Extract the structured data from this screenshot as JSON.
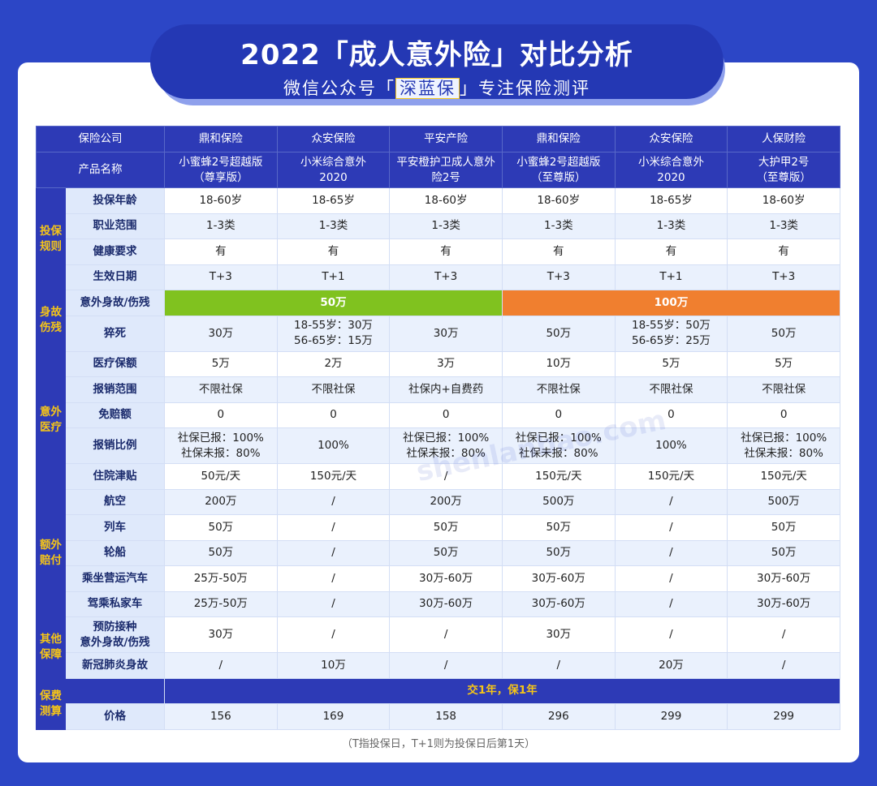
{
  "header": {
    "title": "2022「成人意外险」对比分析",
    "subtitle_before": "微信公众号「",
    "subtitle_highlight": "深蓝保",
    "subtitle_after": "」专注保险测评"
  },
  "table": {
    "company_row": {
      "label": "保险公司",
      "cells": [
        "鼎和保险",
        "众安保险",
        "平安产险",
        "鼎和保险",
        "众安保险",
        "人保财险"
      ]
    },
    "product_row": {
      "label": "产品名称",
      "cells": [
        [
          "小蜜蜂2号超越版",
          "（尊享版）"
        ],
        [
          "小米综合意外",
          "2020"
        ],
        [
          "平安橙护卫成人意外",
          "险2号"
        ],
        [
          "小蜜蜂2号超越版",
          "（至尊版）"
        ],
        [
          "小米综合意外",
          "2020"
        ],
        [
          "大护甲2号",
          "（至尊版）"
        ]
      ]
    },
    "groups": [
      {
        "label": [
          "投保",
          "规则"
        ],
        "rows": [
          {
            "label": "投保年龄",
            "cells": [
              "18-60岁",
              "18-65岁",
              "18-60岁",
              "18-60岁",
              "18-65岁",
              "18-60岁"
            ]
          },
          {
            "label": "职业范围",
            "cells": [
              "1-3类",
              "1-3类",
              "1-3类",
              "1-3类",
              "1-3类",
              "1-3类"
            ]
          },
          {
            "label": "健康要求",
            "cells": [
              "有",
              "有",
              "有",
              "有",
              "有",
              "有"
            ]
          },
          {
            "label": "生效日期",
            "cells": [
              "T+3",
              "T+1",
              "T+3",
              "T+3",
              "T+1",
              "T+3"
            ]
          }
        ]
      },
      {
        "label": [
          "身故",
          "伤残"
        ],
        "rows": [
          {
            "label": "意外身故/伤残",
            "cells": [
              "50万",
              "100万"
            ]
          },
          {
            "label": "猝死",
            "cells": [
              "30万",
              [
                "18-55岁：30万",
                "56-65岁：15万"
              ],
              "30万",
              "50万",
              [
                "18-55岁：50万",
                "56-65岁：25万"
              ],
              "50万"
            ]
          }
        ]
      },
      {
        "label": [
          "意外",
          "医疗"
        ],
        "rows": [
          {
            "label": "医疗保额",
            "cells": [
              "5万",
              "2万",
              "3万",
              "10万",
              "5万",
              "5万"
            ]
          },
          {
            "label": "报销范围",
            "cells": [
              "不限社保",
              "不限社保",
              "社保内+自费药",
              "不限社保",
              "不限社保",
              "不限社保"
            ]
          },
          {
            "label": "免赔额",
            "cells": [
              "0",
              "0",
              "0",
              "0",
              "0",
              "0"
            ]
          },
          {
            "label": "报销比例",
            "cells": [
              [
                "社保已报：100%",
                "社保未报：80%"
              ],
              "100%",
              [
                "社保已报：100%",
                "社保未报：80%"
              ],
              [
                "社保已报：100%",
                "社保未报：80%"
              ],
              "100%",
              [
                "社保已报：100%",
                "社保未报：80%"
              ]
            ]
          },
          {
            "label": "住院津贴",
            "cells": [
              "50元/天",
              "150元/天",
              "/",
              "150元/天",
              "150元/天",
              "150元/天"
            ]
          }
        ]
      },
      {
        "label": [
          "额外",
          "赔付"
        ],
        "rows": [
          {
            "label": "航空",
            "cells": [
              "200万",
              "/",
              "200万",
              "500万",
              "/",
              "500万"
            ]
          },
          {
            "label": "列车",
            "cells": [
              "50万",
              "/",
              "50万",
              "50万",
              "/",
              "50万"
            ]
          },
          {
            "label": "轮船",
            "cells": [
              "50万",
              "/",
              "50万",
              "50万",
              "/",
              "50万"
            ]
          },
          {
            "label": "乘坐营运汽车",
            "cells": [
              "25万-50万",
              "/",
              "30万-60万",
              "30万-60万",
              "/",
              "30万-60万"
            ]
          },
          {
            "label": "驾乘私家车",
            "cells": [
              "25万-50万",
              "/",
              "30万-60万",
              "30万-60万",
              "/",
              "30万-60万"
            ]
          }
        ]
      },
      {
        "label": [
          "其他",
          "保障"
        ],
        "rows": [
          {
            "label": [
              "预防接种",
              "意外身故/伤残"
            ],
            "cells": [
              "30万",
              "/",
              "/",
              "30万",
              "/",
              "/"
            ]
          },
          {
            "label": "新冠肺炎身故",
            "cells": [
              "/",
              "10万",
              "/",
              "/",
              "20万",
              "/"
            ]
          }
        ]
      },
      {
        "label": [
          "保费",
          "测算"
        ],
        "rows": [
          {
            "label": "",
            "cells": [
              "交1年，保1年"
            ]
          },
          {
            "label": "价格",
            "cells": [
              "156",
              "169",
              "158",
              "296",
              "299",
              "299"
            ]
          }
        ]
      }
    ]
  },
  "watermark": "shenlanbao.com",
  "footnote": "（T指投保日，T+1则为投保日后第1天）"
}
